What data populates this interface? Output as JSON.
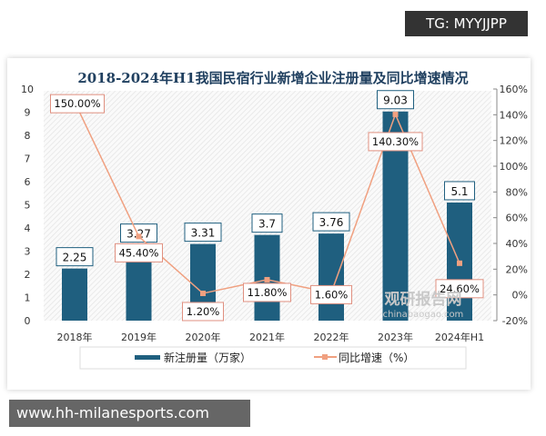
{
  "watermarks": {
    "top": "TG: MYYJJPP",
    "bottom": "www.hh-milanesports.com",
    "logo_cn": "观研报告网",
    "logo_en": "chinabaogao.com"
  },
  "chart_data": {
    "type": "bar",
    "title": "2018-2024年H1我国民宿行业新增企业注册量及同比增速情况",
    "categories": [
      "2018年",
      "2019年",
      "2020年",
      "2021年",
      "2022年",
      "2023年",
      "2024年H1"
    ],
    "series": [
      {
        "name": "新注册量（万家）",
        "type": "bar",
        "axis": "left",
        "color": "#1f5f7f",
        "values": [
          2.25,
          3.27,
          3.31,
          3.7,
          3.76,
          9.03,
          5.1
        ],
        "labels": [
          "2.25",
          "3.27",
          "3.31",
          "3.7",
          "3.76",
          "9.03",
          "5.1"
        ]
      },
      {
        "name": "同比增速（%）",
        "type": "line",
        "axis": "right",
        "color": "#f0a080",
        "values": [
          150.0,
          45.4,
          1.2,
          11.8,
          1.6,
          140.3,
          24.6
        ],
        "labels": [
          "150.00%",
          "45.40%",
          "1.20%",
          "11.80%",
          "1.60%",
          "140.30%",
          "24.60%"
        ]
      }
    ],
    "ylim_left": [
      0,
      10
    ],
    "yticks_left": [
      "0",
      "1",
      "2",
      "3",
      "4",
      "5",
      "6",
      "7",
      "8",
      "9",
      "10"
    ],
    "ylim_right": [
      -20,
      160
    ],
    "yticks_right": [
      "-20%",
      "0%",
      "20%",
      "40%",
      "60%",
      "80%",
      "100%",
      "120%",
      "140%",
      "160%"
    ],
    "legend": "bottom",
    "grid": false
  }
}
